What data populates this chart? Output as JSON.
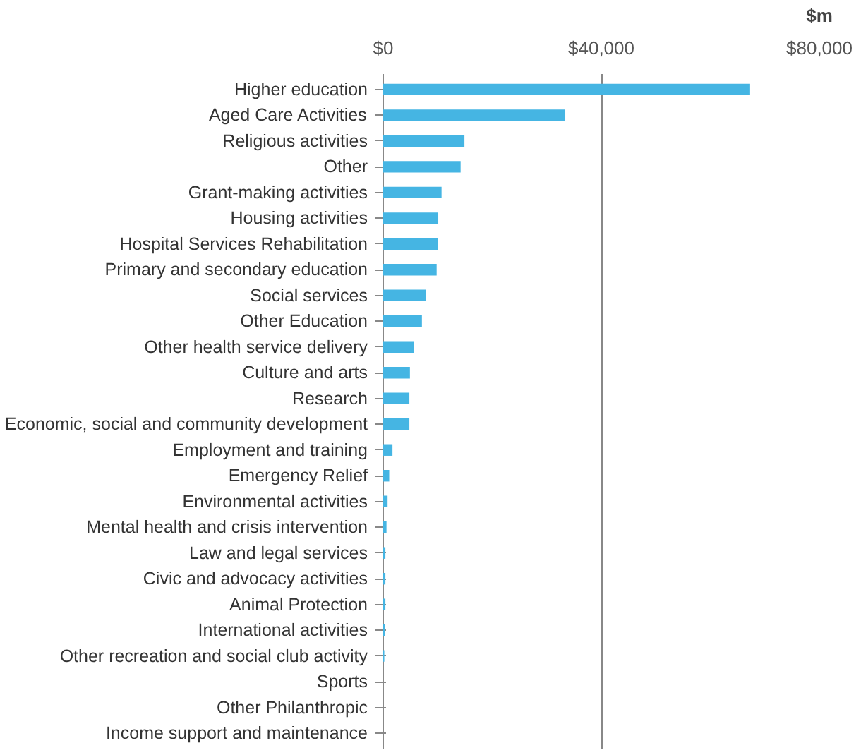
{
  "chart_data": {
    "type": "bar",
    "orientation": "horizontal",
    "xlabel": "$m",
    "categories": [
      "Higher education",
      "Aged Care Activities",
      "Religious activities",
      "Other",
      "Grant-making activities",
      "Housing activities",
      "Hospital Services Rehabilitation",
      "Primary and secondary education",
      "Social services",
      "Other Education",
      "Other health service delivery",
      "Culture and arts",
      "Research",
      "Economic, social and community development",
      "Employment and training",
      "Emergency Relief",
      "Environmental activities",
      "Mental health and crisis intervention",
      "Law and legal services",
      "Civic and advocacy activities",
      "Animal Protection",
      "International activities",
      "Other recreation and social club activity",
      "Sports",
      "Other Philanthropic",
      "Income support and maintenance"
    ],
    "values": [
      67300,
      33400,
      14900,
      14200,
      10700,
      10100,
      10000,
      9800,
      7800,
      7100,
      5600,
      4900,
      4800,
      4800,
      1700,
      1100,
      800,
      600,
      400,
      400,
      400,
      300,
      200,
      0,
      0,
      0
    ],
    "color": "#45b5e3",
    "xlim": [
      0,
      80000
    ],
    "xticks": [
      {
        "value": 0,
        "label": "$0"
      },
      {
        "value": 40000,
        "label": "$40,000"
      },
      {
        "value": 80000,
        "label": "$80,000"
      }
    ],
    "grid": "x"
  }
}
